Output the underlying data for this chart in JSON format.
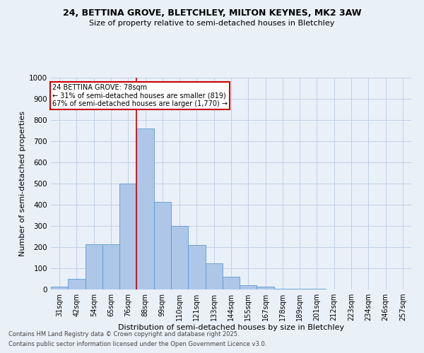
{
  "title_line1": "24, BETTINA GROVE, BLETCHLEY, MILTON KEYNES, MK2 3AW",
  "title_line2": "Size of property relative to semi-detached houses in Bletchley",
  "xlabel": "Distribution of semi-detached houses by size in Bletchley",
  "ylabel": "Number of semi-detached properties",
  "footnote1": "Contains HM Land Registry data © Crown copyright and database right 2025.",
  "footnote2": "Contains public sector information licensed under the Open Government Licence v3.0.",
  "bar_labels": [
    "31sqm",
    "42sqm",
    "54sqm",
    "65sqm",
    "76sqm",
    "88sqm",
    "99sqm",
    "110sqm",
    "121sqm",
    "133sqm",
    "144sqm",
    "155sqm",
    "167sqm",
    "178sqm",
    "189sqm",
    "201sqm",
    "212sqm",
    "223sqm",
    "234sqm",
    "246sqm",
    "257sqm"
  ],
  "bar_values": [
    15,
    50,
    215,
    215,
    500,
    760,
    415,
    300,
    210,
    125,
    60,
    20,
    12,
    5,
    3,
    2,
    1,
    1,
    1,
    0,
    0
  ],
  "bar_color": "#aec6e8",
  "bar_edge_color": "#5b9bd5",
  "annotation_text_line1": "24 BETTINA GROVE: 78sqm",
  "annotation_text_line2": "← 31% of semi-detached houses are smaller (819)",
  "annotation_text_line3": "67% of semi-detached houses are larger (1,770) →",
  "annotation_box_color": "#ffffff",
  "annotation_box_edge": "#cc0000",
  "vertical_line_color": "#cc0000",
  "vline_x": 4.5,
  "ylim": [
    0,
    1000
  ],
  "yticks": [
    0,
    100,
    200,
    300,
    400,
    500,
    600,
    700,
    800,
    900,
    1000
  ],
  "grid_color": "#c0d0e8",
  "bg_color": "#eaf0f8"
}
